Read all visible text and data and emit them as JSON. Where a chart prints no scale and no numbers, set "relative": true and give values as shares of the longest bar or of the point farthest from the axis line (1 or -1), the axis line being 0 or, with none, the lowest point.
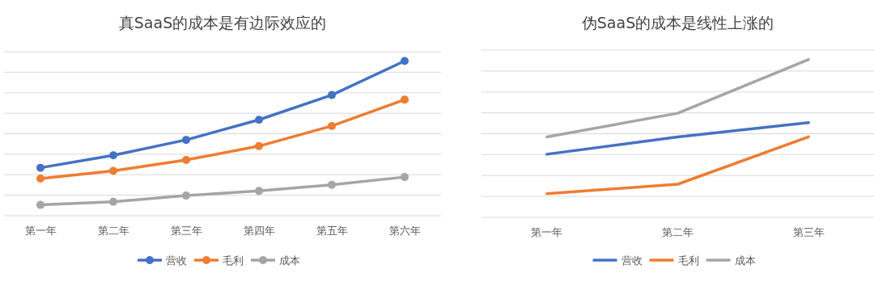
{
  "chart_data": [
    {
      "type": "line",
      "title": "真SaaS的成本是有边际效应的",
      "relative": true,
      "grid": "y",
      "legend": "bottom",
      "marker": "circle",
      "categories": [
        "第一年",
        "第二年",
        "第三年",
        "第四年",
        "第五年",
        "第六年"
      ],
      "series": [
        {
          "name": "营收",
          "color": "#4472c4",
          "values": [
            0.31,
            0.39,
            0.49,
            0.62,
            0.78,
            1
          ]
        },
        {
          "name": "毛利",
          "color": "#ed7d31",
          "values": [
            0.24,
            0.29,
            0.36,
            0.45,
            0.58,
            0.75
          ]
        },
        {
          "name": "成本",
          "color": "#a5a5a5",
          "values": [
            0.07,
            0.09,
            0.13,
            0.16,
            0.2,
            0.25
          ]
        }
      ]
    },
    {
      "type": "line",
      "title": "伪SaaS的成本是线性上涨的",
      "relative": true,
      "grid": "y",
      "legend": "bottom",
      "marker": "none",
      "categories": [
        "第一年",
        "第二年",
        "第三年"
      ],
      "series": [
        {
          "name": "营收",
          "color": "#4472c4",
          "values": [
            0.4,
            0.51,
            0.6
          ]
        },
        {
          "name": "毛利",
          "color": "#ed7d31",
          "values": [
            0.15,
            0.21,
            0.51
          ]
        },
        {
          "name": "成本",
          "color": "#a5a5a5",
          "values": [
            0.51,
            0.66,
            1
          ]
        }
      ]
    }
  ]
}
